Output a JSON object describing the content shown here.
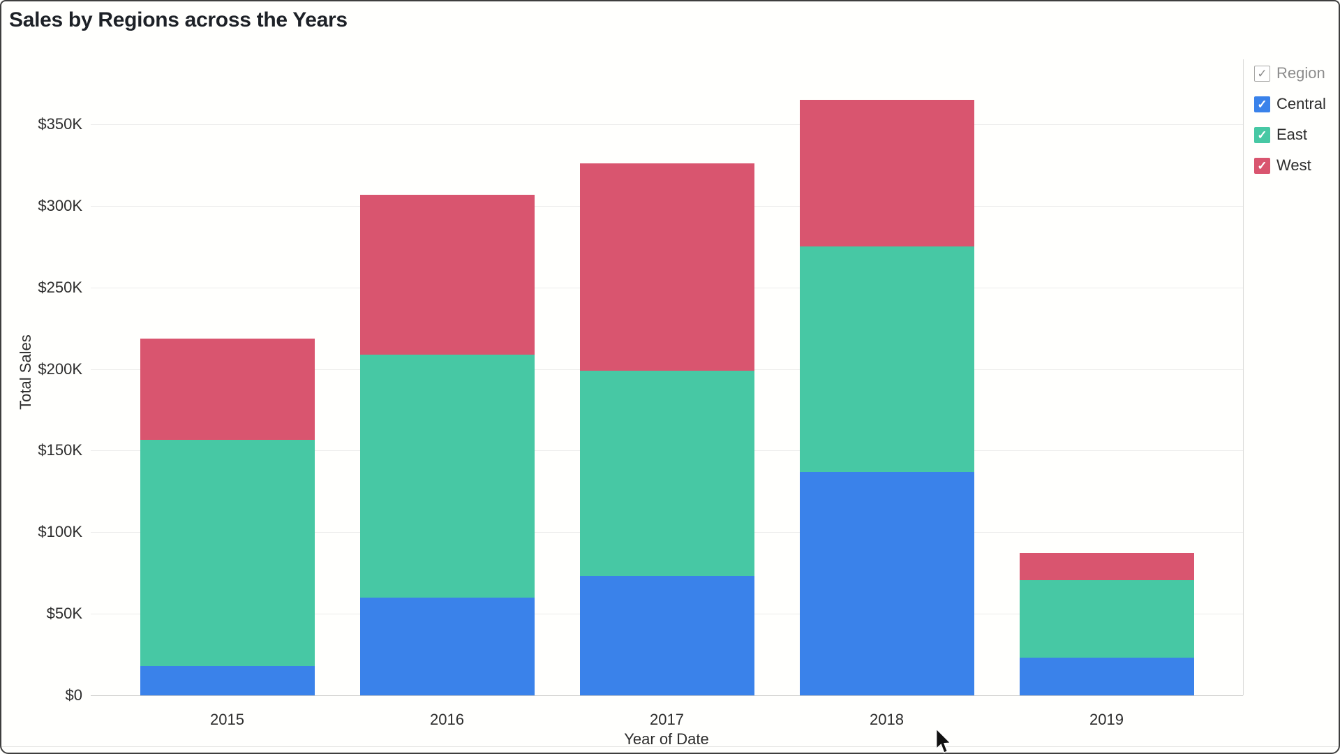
{
  "window": {
    "title": "Sales by Regions across the Years"
  },
  "chart_data": {
    "type": "bar",
    "stacked": true,
    "title": "Sales by Regions across the Years",
    "categories": [
      "2015",
      "2016",
      "2017",
      "2018",
      "2019"
    ],
    "series": [
      {
        "name": "Central",
        "color": "#3a82ea",
        "values": [
          18000,
          60000,
          73000,
          137000,
          23000
        ]
      },
      {
        "name": "East",
        "color": "#47c8a4",
        "values": [
          138500,
          149000,
          126000,
          138000,
          47500
        ]
      },
      {
        "name": "West",
        "color": "#d9556f",
        "values": [
          62000,
          98000,
          127000,
          90000,
          17000
        ]
      }
    ],
    "totals": [
      218500,
      307000,
      326000,
      365000,
      87500
    ],
    "xlabel": "Year of Date",
    "ylabel": "Total Sales",
    "ylim": [
      0,
      350000
    ],
    "y_ticks": [
      {
        "value": 0,
        "label": "$0"
      },
      {
        "value": 50000,
        "label": "$50K"
      },
      {
        "value": 100000,
        "label": "$100K"
      },
      {
        "value": 150000,
        "label": "$150K"
      },
      {
        "value": 200000,
        "label": "$200K"
      },
      {
        "value": 250000,
        "label": "$250K"
      },
      {
        "value": 300000,
        "label": "$300K"
      },
      {
        "value": 350000,
        "label": "$350K"
      }
    ],
    "grid": "horizontal",
    "legend_position": "top-right"
  },
  "legend": {
    "header": {
      "label": "Region",
      "checked": true
    },
    "items": [
      {
        "label": "Central",
        "color": "#3a82ea",
        "checked": true
      },
      {
        "label": "East",
        "color": "#47c8a4",
        "checked": true
      },
      {
        "label": "West",
        "color": "#d9556f",
        "checked": true
      }
    ]
  },
  "icons": {
    "check": "✓"
  },
  "colors": {
    "background": "#fffffd",
    "title_text": "#1d2127",
    "axis_text": "#2d2d2d",
    "gridline": "#ececeb",
    "axis_line": "#c9c9c7",
    "frame": "#3e3e3e"
  }
}
